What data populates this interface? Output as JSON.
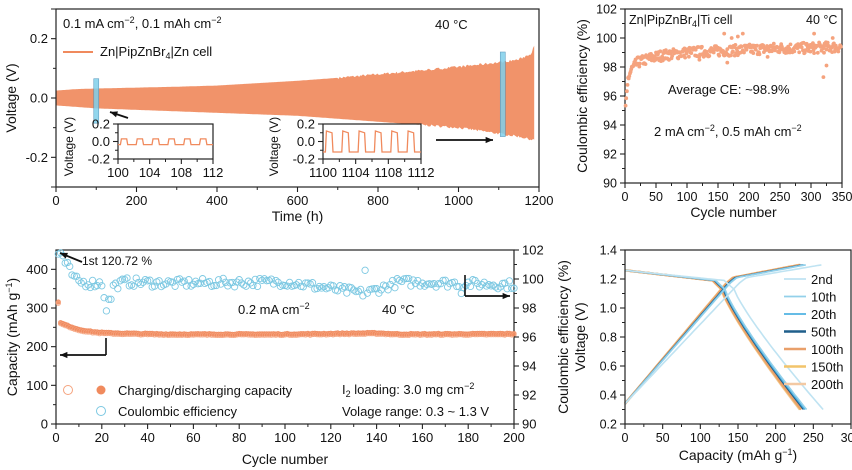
{
  "colors": {
    "orange": "#F08A5D",
    "orange_light": "#F5A37E",
    "blue_light": "#6EC6E6",
    "blue_ce": "#7CC8E2",
    "cyan_box": "#7FD0EA",
    "curve_2nd": "#BFE3F2",
    "curve_10th": "#93D0EA",
    "curve_20th": "#4FB3E3",
    "curve_50th": "#1F5F8B",
    "curve_100th": "#E9A06A",
    "curve_150th": "#F2C46A",
    "curve_200th": "#F3C9A3"
  },
  "chart_data": [
    {
      "id": "a",
      "type": "area",
      "title": "",
      "xlabel": "Time (h)",
      "ylabel": "Voltage (V)",
      "xlim": [
        0,
        1200
      ],
      "ylim": [
        -0.3,
        0.3
      ],
      "xticks": [
        0,
        200,
        400,
        600,
        800,
        1000,
        1200
      ],
      "yticks": [
        -0.2,
        0.0,
        0.2
      ],
      "annotations": {
        "condition": "0.1 mA cm−2, 0.1 mAh cm−2",
        "temperature": "40 °C",
        "legend": "Zn|PipZnBr4|Zn cell"
      },
      "envelope": {
        "x": [
          0,
          50,
          100,
          200,
          300,
          400,
          500,
          600,
          700,
          800,
          900,
          1000,
          1100,
          1150,
          1180,
          1190
        ],
        "upper": [
          0.025,
          0.03,
          0.032,
          0.035,
          0.038,
          0.042,
          0.05,
          0.058,
          0.068,
          0.08,
          0.092,
          0.105,
          0.12,
          0.13,
          0.15,
          0.18
        ],
        "lower": [
          -0.025,
          -0.03,
          -0.035,
          -0.04,
          -0.045,
          -0.05,
          -0.055,
          -0.06,
          -0.07,
          -0.08,
          -0.09,
          -0.1,
          -0.12,
          -0.13,
          -0.14,
          -0.14
        ]
      },
      "highlight_windows_h": [
        100,
        1110
      ],
      "insets": [
        {
          "xlim": [
            100,
            112
          ],
          "ylim": [
            -0.2,
            0.2
          ],
          "xticks": [
            100,
            104,
            108,
            112
          ],
          "yticks": [
            -0.2,
            0.0,
            0.2
          ],
          "ylabel": "Voltage (V)",
          "amplitude": 0.03,
          "period_h": 2
        },
        {
          "xlim": [
            1100,
            1112
          ],
          "ylim": [
            -0.2,
            0.2
          ],
          "xticks": [
            1100,
            1104,
            1108,
            1112
          ],
          "yticks": [
            -0.2,
            0.0,
            0.2
          ],
          "ylabel": "Voltage (V)",
          "amplitude": 0.12,
          "period_h": 2
        }
      ]
    },
    {
      "id": "b",
      "type": "scatter",
      "xlabel": "Cycle number",
      "ylabel": "Coulombic efficiency (%)",
      "xlim": [
        0,
        350
      ],
      "ylim": [
        90,
        102
      ],
      "xticks": [
        0,
        50,
        100,
        150,
        200,
        250,
        300,
        350
      ],
      "yticks": [
        90,
        92,
        94,
        96,
        98,
        100,
        102
      ],
      "annotations": {
        "cell": "Zn|PipZnBr4|Ti cell",
        "temperature": "40 °C",
        "average": "Average CE: ~98.9%",
        "condition": "2 mA cm−2, 0.5 mAh cm−2"
      },
      "trend": {
        "x": [
          1,
          3,
          5,
          10,
          20,
          40,
          60,
          100,
          150,
          200,
          250,
          300,
          350
        ],
        "y": [
          95.3,
          96.3,
          97.2,
          97.8,
          98.3,
          98.6,
          98.8,
          99.0,
          99.1,
          99.2,
          99.3,
          99.3,
          99.4
        ]
      },
      "outliers": [
        [
          160,
          100.3
        ],
        [
          172,
          100.0
        ],
        [
          182,
          100.1
        ],
        [
          190,
          100.3
        ],
        [
          305,
          100.3
        ],
        [
          320,
          97.3
        ],
        [
          325,
          98.1
        ],
        [
          335,
          100.0
        ],
        [
          165,
          98.3
        ],
        [
          120,
          98.5
        ],
        [
          230,
          98.7
        ]
      ]
    },
    {
      "id": "c",
      "type": "scatter",
      "xlabel": "Cycle number",
      "ylabel": "Capacity (mAh g−1)",
      "y2label": "Coulombic efficiency (%)",
      "xlim": [
        0,
        200
      ],
      "ylim": [
        0,
        450
      ],
      "y2lim": [
        90,
        102
      ],
      "xticks": [
        0,
        20,
        40,
        60,
        80,
        100,
        120,
        140,
        160,
        180,
        200
      ],
      "yticks": [
        0,
        100,
        200,
        300,
        400
      ],
      "y2ticks": [
        90,
        92,
        94,
        96,
        98,
        100,
        102
      ],
      "annotations": {
        "first_ce": "1st 120.72 %",
        "current": "0.2 mA cm−2",
        "temperature": "40 °C",
        "loading": "I2 loading: 3.0 mg cm−2",
        "voltage_range": "Volage range: 0.3 ~ 1.3 V"
      },
      "legend": [
        {
          "label": "Charging/discharging capacity",
          "marker": "orange open+filled circle"
        },
        {
          "label": "Coulombic efficiency",
          "marker": "blue open circle"
        }
      ],
      "capacity": {
        "x": [
          1,
          2,
          5,
          10,
          15,
          20,
          30,
          50,
          100,
          140,
          150,
          200
        ],
        "y": [
          315,
          262,
          255,
          245,
          240,
          237,
          235,
          233,
          233,
          236,
          233,
          234
        ]
      },
      "ce": {
        "x": [
          1,
          3,
          5,
          8,
          10,
          15,
          20,
          22,
          25,
          30,
          50,
          100,
          135,
          150,
          200
        ],
        "y": [
          120.72,
          101.5,
          100.9,
          100.0,
          99.8,
          99.7,
          99.7,
          98.0,
          99.5,
          99.8,
          99.7,
          99.8,
          99.0,
          99.8,
          99.6
        ]
      }
    },
    {
      "id": "d",
      "type": "line",
      "xlabel": "Capacity (mAh g−1)",
      "ylabel": "Voltage (V)",
      "xlim": [
        0,
        300
      ],
      "ylim": [
        0.2,
        1.4
      ],
      "xticks": [
        0,
        50,
        100,
        150,
        200,
        250,
        300
      ],
      "yticks": [
        0.2,
        0.4,
        0.6,
        0.8,
        1.0,
        1.2,
        1.4
      ],
      "legend_position": "right",
      "series": [
        {
          "name": "2nd",
          "discharge_end": 263,
          "charge_end": 262
        },
        {
          "name": "10th",
          "discharge_end": 241,
          "charge_end": 240
        },
        {
          "name": "20th",
          "discharge_end": 239,
          "charge_end": 238
        },
        {
          "name": "50th",
          "discharge_end": 237,
          "charge_end": 236
        },
        {
          "name": "100th",
          "discharge_end": 234,
          "charge_end": 233
        },
        {
          "name": "150th",
          "discharge_end": 233,
          "charge_end": 232
        },
        {
          "name": "200th",
          "discharge_end": 232,
          "charge_end": 231
        }
      ]
    }
  ]
}
